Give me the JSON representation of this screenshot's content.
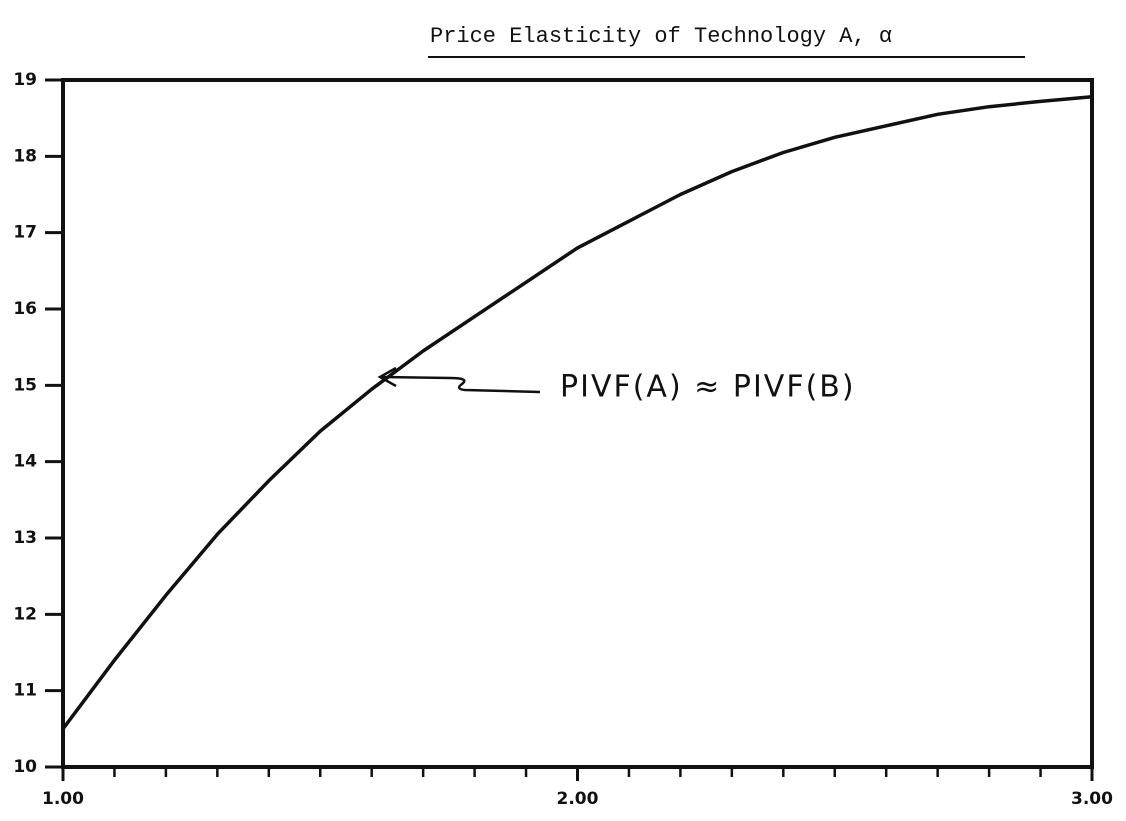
{
  "chart_data": {
    "type": "line",
    "title": "Price Elasticity of Technology A, α",
    "annotation": "PIVF(A) ≈ PIVF(B)",
    "x": [
      1.0,
      1.1,
      1.2,
      1.3,
      1.4,
      1.5,
      1.6,
      1.7,
      1.8,
      1.9,
      2.0,
      2.1,
      2.2,
      2.3,
      2.4,
      2.5,
      2.6,
      2.7,
      2.8,
      2.9,
      3.0
    ],
    "values": [
      10.5,
      11.4,
      12.25,
      13.05,
      13.75,
      14.4,
      14.95,
      15.45,
      15.9,
      16.35,
      16.8,
      17.15,
      17.5,
      17.8,
      18.05,
      18.25,
      18.4,
      18.55,
      18.65,
      18.72,
      18.78
    ],
    "color": "#111111",
    "xlim": [
      1,
      3
    ],
    "xticks": [
      {
        "value": 1,
        "label": "1.00"
      },
      {
        "value": 2,
        "label": "2.00"
      },
      {
        "value": 3,
        "label": "3.00"
      }
    ],
    "minor_xticks": [
      1.1,
      1.2,
      1.3,
      1.4,
      1.5,
      1.6,
      1.7,
      1.8,
      1.9,
      2.1,
      2.2,
      2.3,
      2.4,
      2.5,
      2.6,
      2.7,
      2.8,
      2.9
    ],
    "ylim": [
      10,
      19
    ],
    "yticks": [
      10,
      11,
      12,
      13,
      14,
      15,
      16,
      17,
      18,
      19
    ],
    "grid": false
  }
}
